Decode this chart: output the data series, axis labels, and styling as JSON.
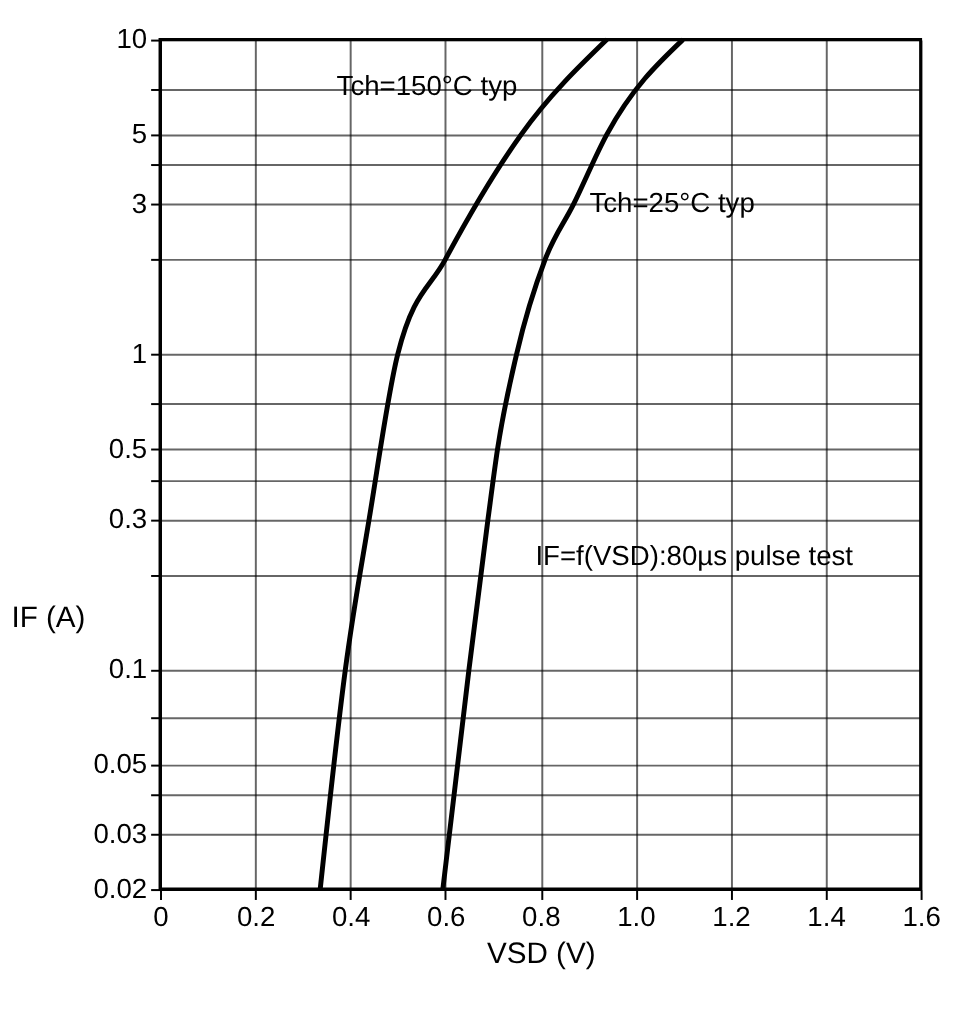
{
  "chart_data": {
    "type": "line",
    "xlabel": "VSD (V)",
    "ylabel": "IF (A)",
    "series": [
      {
        "name": "Tch=150°C typ",
        "color": "#000000",
        "x": [
          0.337,
          0.39,
          0.44,
          0.5,
          0.6,
          0.76,
          0.94
        ],
        "values": [
          0.02,
          0.1,
          0.3,
          1,
          2,
          5,
          10
        ]
      },
      {
        "name": "Tch=25°C typ",
        "color": "#000000",
        "x": [
          0.595,
          0.65,
          0.69,
          0.71,
          0.75,
          0.81,
          0.87,
          0.94,
          1.1
        ],
        "values": [
          0.02,
          0.1,
          0.3,
          0.5,
          1,
          2,
          3,
          5,
          10
        ]
      }
    ],
    "annotations": [
      "IF=f(VSD):80µs pulse test"
    ],
    "xlim": [
      0,
      1.6
    ],
    "xticks": [
      0,
      0.2,
      0.4,
      0.6,
      0.8,
      {
        "value": 1.0,
        "label": "1.0"
      },
      1.2,
      1.4,
      1.6
    ],
    "ylim": [
      0.02,
      10
    ],
    "log": true,
    "yticks": [
      0.02,
      0.03,
      {
        "value": 0.04,
        "label": null
      },
      0.05,
      {
        "value": 0.07,
        "label": null
      },
      0.1,
      {
        "value": 0.2,
        "label": null
      },
      0.3,
      {
        "value": 0.4,
        "label": null
      },
      0.5,
      {
        "value": 0.7,
        "label": null
      },
      1,
      {
        "value": 2,
        "label": null
      },
      3,
      {
        "value": 4,
        "label": null
      },
      5,
      {
        "value": 7,
        "label": null
      },
      10
    ],
    "grid": true,
    "marker": "none",
    "line_style": "solid"
  }
}
